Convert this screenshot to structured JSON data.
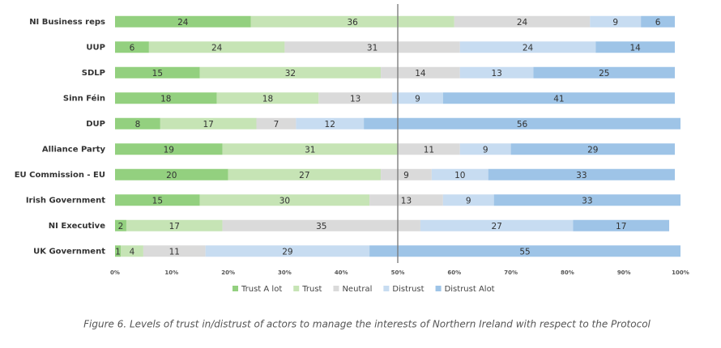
{
  "chart_data": {
    "type": "stacked-bar-horizontal",
    "categories": [
      "NI Business reps",
      "UUP",
      "SDLP",
      "Sinn Féin",
      "DUP",
      "Alliance Party",
      "EU Commission - EU",
      "Irish Government",
      "NI Executive",
      "UK Government"
    ],
    "series": [
      {
        "name": "Trust A lot",
        "color": "#93d07f",
        "values": [
          24,
          6,
          15,
          18,
          8,
          19,
          20,
          15,
          2,
          1
        ]
      },
      {
        "name": "Trust",
        "color": "#c6e4b5",
        "values": [
          36,
          24,
          32,
          18,
          17,
          31,
          27,
          30,
          17,
          4
        ]
      },
      {
        "name": "Neutral",
        "color": "#dadada",
        "values": [
          24,
          31,
          14,
          13,
          7,
          11,
          9,
          13,
          35,
          11
        ]
      },
      {
        "name": "Distrust",
        "color": "#c7dcf1",
        "values": [
          9,
          24,
          13,
          9,
          12,
          9,
          10,
          9,
          27,
          29
        ]
      },
      {
        "name": "Distrust Alot",
        "color": "#9ec4e7",
        "values": [
          6,
          14,
          25,
          41,
          56,
          29,
          33,
          33,
          17,
          55
        ]
      }
    ],
    "xlim": [
      0,
      100
    ],
    "xticks": [
      {
        "value": 0,
        "label": "0%"
      },
      {
        "value": 10,
        "label": "10%"
      },
      {
        "value": 20,
        "label": "20%"
      },
      {
        "value": 30,
        "label": "30%"
      },
      {
        "value": 40,
        "label": "40%"
      },
      {
        "value": 50,
        "label": "50%"
      },
      {
        "value": 60,
        "label": "60%"
      },
      {
        "value": 70,
        "label": "70%"
      },
      {
        "value": 80,
        "label": "80%"
      },
      {
        "value": 90,
        "label": "90%"
      },
      {
        "value": 100,
        "label": "100%"
      }
    ],
    "reference_line": 50,
    "legend": "bottom",
    "caption": "Figure 6. Levels of trust in/distrust of actors to manage the interests of Northern Ireland with respect to the Protocol"
  }
}
